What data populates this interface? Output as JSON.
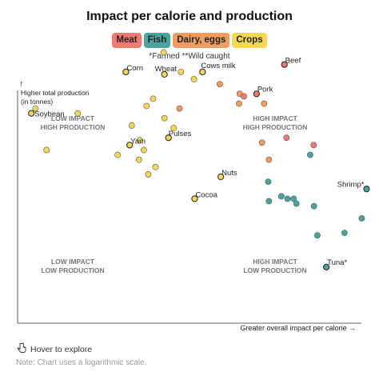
{
  "chart_data": {
    "type": "scatter",
    "title": "Impact per calorie and production",
    "subtitle": "*Farmed **Wild caught",
    "xlabel": "Greater overall impact per calorie →",
    "ylabel": "Higher total production (in tonnes)",
    "y_arrow": "↑",
    "x_scale": "log",
    "y_scale": "log",
    "xlim": [
      0,
      100
    ],
    "ylim": [
      0,
      100
    ],
    "grid": false,
    "legend_position": "top-center",
    "categories": [
      {
        "key": "meat",
        "name": "Meat",
        "color": "#ee7b70"
      },
      {
        "key": "fish",
        "name": "Fish",
        "color": "#4aa39c"
      },
      {
        "key": "dairy",
        "name": "Dairy, eggs",
        "color": "#ef9d5f"
      },
      {
        "key": "crops",
        "name": "Crops",
        "color": "#f5d657"
      }
    ],
    "quadrant_labels": [
      {
        "line1": "LOW IMPACT",
        "line2": "HIGH PRODUCTION"
      },
      {
        "line1": "HIGH IMPACT",
        "line2": "HIGH PRODUCTION"
      },
      {
        "line1": "LOW IMPACT",
        "line2": "LOW PRODUCTION"
      },
      {
        "line1": "HIGH IMPACT",
        "line2": "LOW PRODUCTION"
      }
    ],
    "points": [
      {
        "x": 4,
        "y": 86,
        "category": "crops",
        "label": "Soybean"
      },
      {
        "x": 5.2,
        "y": 88,
        "category": "crops"
      },
      {
        "x": 17.5,
        "y": 86,
        "category": "crops"
      },
      {
        "x": 8.4,
        "y": 71,
        "category": "crops"
      },
      {
        "x": 31.5,
        "y": 103,
        "category": "crops",
        "label": "Corn"
      },
      {
        "x": 42.5,
        "y": 111,
        "category": "crops"
      },
      {
        "x": 42.7,
        "y": 102,
        "category": "crops",
        "label": "Wheat"
      },
      {
        "x": 47.5,
        "y": 103,
        "category": "crops"
      },
      {
        "x": 53.8,
        "y": 103,
        "category": "crops",
        "label": "Cows milk"
      },
      {
        "x": 51.3,
        "y": 100,
        "category": "crops"
      },
      {
        "x": 39.4,
        "y": 92,
        "category": "crops"
      },
      {
        "x": 37.5,
        "y": 89,
        "category": "crops"
      },
      {
        "x": 42.7,
        "y": 84,
        "category": "crops"
      },
      {
        "x": 33.2,
        "y": 81,
        "category": "crops"
      },
      {
        "x": 45.4,
        "y": 80,
        "category": "crops"
      },
      {
        "x": 43.9,
        "y": 76,
        "category": "crops",
        "label": "Pulses"
      },
      {
        "x": 35.6,
        "y": 75,
        "category": "crops"
      },
      {
        "x": 32.6,
        "y": 73,
        "category": "crops",
        "label": "Yam"
      },
      {
        "x": 36.7,
        "y": 71,
        "category": "crops"
      },
      {
        "x": 29.1,
        "y": 69,
        "category": "crops"
      },
      {
        "x": 35.3,
        "y": 67,
        "category": "crops"
      },
      {
        "x": 40.1,
        "y": 64,
        "category": "crops"
      },
      {
        "x": 38.0,
        "y": 61,
        "category": "crops"
      },
      {
        "x": 59.1,
        "y": 60,
        "category": "crops",
        "label": "Nuts"
      },
      {
        "x": 51.5,
        "y": 51,
        "category": "crops",
        "label": "Cocoa"
      },
      {
        "x": 58.8,
        "y": 98,
        "category": "dairy"
      },
      {
        "x": 64.6,
        "y": 94,
        "category": "dairy"
      },
      {
        "x": 47.1,
        "y": 88,
        "category": "dairy"
      },
      {
        "x": 64.4,
        "y": 90,
        "category": "dairy"
      },
      {
        "x": 71.7,
        "y": 90,
        "category": "dairy"
      },
      {
        "x": 71.1,
        "y": 74,
        "category": "dairy"
      },
      {
        "x": 73.1,
        "y": 67,
        "category": "dairy"
      },
      {
        "x": 65.8,
        "y": 93,
        "category": "meat"
      },
      {
        "x": 69.5,
        "y": 94,
        "category": "meat",
        "label": "Pork"
      },
      {
        "x": 77.6,
        "y": 106,
        "category": "meat",
        "label": "Beef"
      },
      {
        "x": 78.2,
        "y": 76,
        "category": "meat"
      },
      {
        "x": 86.1,
        "y": 73,
        "category": "meat"
      },
      {
        "x": 85.1,
        "y": 69,
        "category": "fish"
      },
      {
        "x": 72.9,
        "y": 58,
        "category": "fish"
      },
      {
        "x": 73.1,
        "y": 50,
        "category": "fish"
      },
      {
        "x": 76.7,
        "y": 52,
        "category": "fish"
      },
      {
        "x": 78.5,
        "y": 51,
        "category": "fish"
      },
      {
        "x": 80.3,
        "y": 51,
        "category": "fish"
      },
      {
        "x": 81.1,
        "y": 49,
        "category": "fish"
      },
      {
        "x": 86.2,
        "y": 48,
        "category": "fish"
      },
      {
        "x": 101.5,
        "y": 55,
        "category": "fish",
        "label": "Shrimp*"
      },
      {
        "x": 100.1,
        "y": 43,
        "category": "fish"
      },
      {
        "x": 87.2,
        "y": 36,
        "category": "fish"
      },
      {
        "x": 95.1,
        "y": 37,
        "category": "fish"
      },
      {
        "x": 89.8,
        "y": 23,
        "category": "fish",
        "label": "Tuna*"
      }
    ]
  },
  "hover_hint": "Hover to explore",
  "footnote": "Note: Chart uses a logarithmic scale.",
  "icons": {
    "hand": "pointer-hand-icon"
  }
}
